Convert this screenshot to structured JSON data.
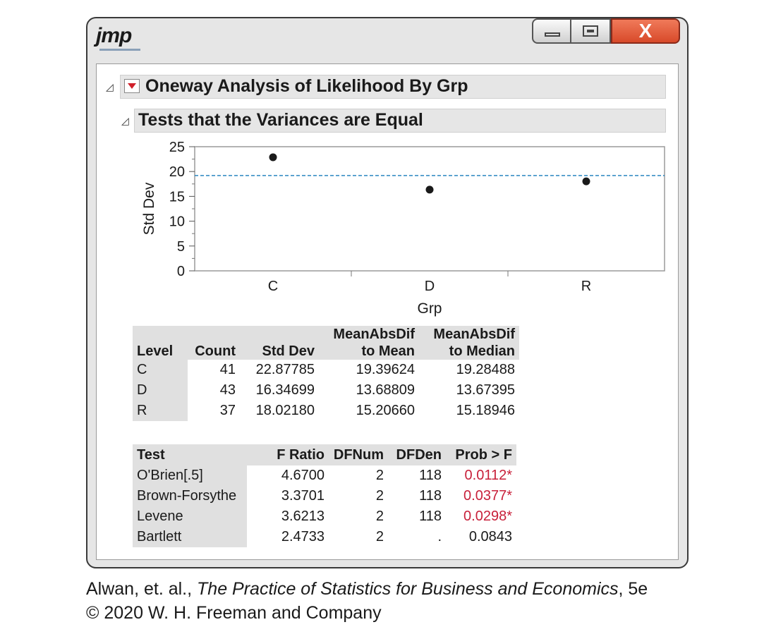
{
  "app": {
    "logo_text": "jmp"
  },
  "window_controls": {
    "close_glyph": "X"
  },
  "report": {
    "title": "Oneway Analysis of Likelihood By Grp",
    "section_title": "Tests that the Variances are Equal"
  },
  "chart_data": {
    "type": "scatter",
    "categories": [
      "C",
      "D",
      "R"
    ],
    "values": [
      22.87785,
      16.34699,
      18.0218
    ],
    "reference_line": 19.2,
    "xlabel": "Grp",
    "ylabel": "Std Dev",
    "ylim": [
      0,
      25
    ],
    "yticks": [
      "0",
      "5",
      "10",
      "15",
      "20",
      "25"
    ]
  },
  "levels_table": {
    "headers": [
      "Level",
      "Count",
      "Std Dev",
      "MeanAbsDif to Mean",
      "MeanAbsDif to Median"
    ],
    "header_top": [
      "",
      "",
      "",
      "MeanAbsDif",
      "MeanAbsDif"
    ],
    "header_bottom": [
      "Level",
      "Count",
      "Std Dev",
      "to Mean",
      "to Median"
    ],
    "rows": [
      [
        "C",
        "41",
        "22.87785",
        "19.39624",
        "19.28488"
      ],
      [
        "D",
        "43",
        "16.34699",
        "13.68809",
        "13.67395"
      ],
      [
        "R",
        "37",
        "18.02180",
        "15.20660",
        "15.18946"
      ]
    ]
  },
  "tests_table": {
    "headers": [
      "Test",
      "F Ratio",
      "DFNum",
      "DFDen",
      "Prob > F"
    ],
    "rows": [
      [
        "O'Brien[.5]",
        "4.6700",
        "2",
        "118",
        "0.0112*"
      ],
      [
        "Brown-Forsythe",
        "3.3701",
        "2",
        "118",
        "0.0377*"
      ],
      [
        "Levene",
        "3.6213",
        "2",
        "118",
        "0.0298*"
      ],
      [
        "Bartlett",
        "2.4733",
        "2",
        ".",
        "0.0843"
      ]
    ],
    "significant_color": "#c8203a"
  },
  "credit": {
    "authors": "Alwan, et. al., ",
    "book": "The Practice of Statistics for Business and Economics",
    "edition": ", 5e",
    "copyright": "© 2020 W. H. Freeman and Company"
  }
}
